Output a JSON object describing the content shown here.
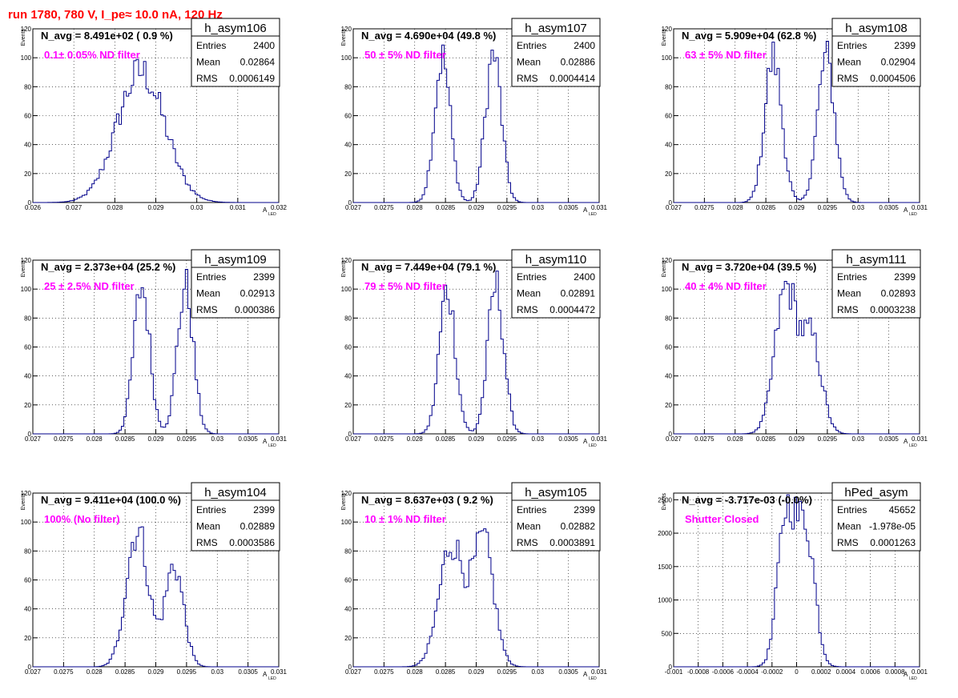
{
  "page": {
    "title": "run 1780,   780 V, I_pe≈ 10.0 nA, 120 Hz"
  },
  "style": {
    "histColor": "#00008b",
    "titleColor": "#ff0000",
    "annotationColor": "#ff00ff",
    "gridColor": "#000000"
  },
  "chart_data": [
    {
      "type": "histogram",
      "name": "h_asym106",
      "navg": "N_avg = 8.491e+02 ( 0.9 %)",
      "note": "0.1± 0.05% ND filter",
      "stats": {
        "Entries": "2400",
        "Mean": "0.02864",
        "RMS": "0.0006149"
      },
      "xlabel": "A",
      "xlabel_sub": "LED",
      "ylabel": "Events",
      "xlim": [
        0.026,
        0.032
      ],
      "xticks": [
        0.026,
        0.027,
        0.028,
        0.029,
        0.03,
        0.031,
        0.032
      ],
      "xtick_labels": [
        "0.026",
        "0.027",
        "0.028",
        "0.029",
        "0.03",
        "0.031",
        "0.032"
      ],
      "ylim": [
        0,
        120
      ],
      "yticks": [
        0,
        20,
        40,
        60,
        80,
        100,
        120
      ],
      "ytick_labels": [
        "0",
        "20",
        "40",
        "60",
        "80",
        "100",
        "120"
      ],
      "peaks": [
        {
          "mu": 0.02864,
          "sigma": 0.00058,
          "amp": 90
        }
      ]
    },
    {
      "type": "histogram",
      "name": "h_asym107",
      "navg": "N_avg = 4.690e+04 (49.8 %)",
      "note": "50 ± 5% ND filter",
      "stats": {
        "Entries": "2400",
        "Mean": "0.02886",
        "RMS": "0.0004414"
      },
      "xlabel": "A",
      "xlabel_sub": "LED",
      "ylabel": "Events",
      "xlim": [
        0.027,
        0.031
      ],
      "xticks": [
        0.027,
        0.0275,
        0.028,
        0.0285,
        0.029,
        0.0295,
        0.03,
        0.0305,
        0.031
      ],
      "xtick_labels": [
        "0.027",
        "0.0275",
        "0.028",
        "0.0285",
        "0.029",
        "0.0295",
        "0.03",
        "0.0305",
        "0.031"
      ],
      "ylim": [
        0,
        120
      ],
      "yticks": [
        0,
        20,
        40,
        60,
        80,
        100,
        120
      ],
      "ytick_labels": [
        "0",
        "20",
        "40",
        "60",
        "80",
        "100",
        "120"
      ],
      "peaks": [
        {
          "mu": 0.02845,
          "sigma": 0.00013,
          "amp": 100
        },
        {
          "mu": 0.02928,
          "sigma": 0.00013,
          "amp": 102
        }
      ]
    },
    {
      "type": "histogram",
      "name": "h_asym108",
      "navg": "N_avg = 5.909e+04 (62.8 %)",
      "note": "63 ± 5% ND filter",
      "stats": {
        "Entries": "2399",
        "Mean": "0.02904",
        "RMS": "0.0004506"
      },
      "xlabel": "A",
      "xlabel_sub": "LED",
      "ylabel": "Events",
      "xlim": [
        0.027,
        0.031
      ],
      "xticks": [
        0.027,
        0.0275,
        0.028,
        0.0285,
        0.029,
        0.0295,
        0.03,
        0.0305,
        0.031
      ],
      "xtick_labels": [
        "0.027",
        "0.0275",
        "0.028",
        "0.0285",
        "0.029",
        "0.0295",
        "0.03",
        "0.0305",
        "0.031"
      ],
      "ylim": [
        0,
        120
      ],
      "yticks": [
        0,
        20,
        40,
        60,
        80,
        100,
        120
      ],
      "ytick_labels": [
        "0",
        "20",
        "40",
        "60",
        "80",
        "100",
        "120"
      ],
      "peaks": [
        {
          "mu": 0.02862,
          "sigma": 0.00014,
          "amp": 100
        },
        {
          "mu": 0.02948,
          "sigma": 0.00014,
          "amp": 100
        }
      ]
    },
    {
      "type": "histogram",
      "name": "h_asym109",
      "navg": "N_avg = 2.373e+04 (25.2 %)",
      "note": "25 ± 2.5% ND filter",
      "stats": {
        "Entries": "2399",
        "Mean": "0.02913",
        "RMS": "0.000386"
      },
      "xlabel": "A",
      "xlabel_sub": "LED",
      "ylabel": "Events",
      "xlim": [
        0.027,
        0.031
      ],
      "xticks": [
        0.027,
        0.0275,
        0.028,
        0.0285,
        0.029,
        0.0295,
        0.03,
        0.0305,
        0.031
      ],
      "xtick_labels": [
        "0.027",
        "0.0275",
        "0.028",
        "0.0285",
        "0.029",
        "0.0295",
        "0.03",
        "0.0305",
        "0.031"
      ],
      "ylim": [
        0,
        120
      ],
      "yticks": [
        0,
        20,
        40,
        60,
        80,
        100,
        120
      ],
      "ytick_labels": [
        "0",
        "20",
        "40",
        "60",
        "80",
        "100",
        "120"
      ],
      "peaks": [
        {
          "mu": 0.02877,
          "sigma": 0.00013,
          "amp": 102
        },
        {
          "mu": 0.02948,
          "sigma": 0.00013,
          "amp": 102
        }
      ]
    },
    {
      "type": "histogram",
      "name": "h_asym110",
      "navg": "N_avg = 7.449e+04 (79.1 %)",
      "note": "79 ± 5% ND filter",
      "stats": {
        "Entries": "2400",
        "Mean": "0.02891",
        "RMS": "0.0004472"
      },
      "xlabel": "A",
      "xlabel_sub": "LED",
      "ylabel": "Events",
      "xlim": [
        0.027,
        0.031
      ],
      "xticks": [
        0.027,
        0.0275,
        0.028,
        0.0285,
        0.029,
        0.0295,
        0.03,
        0.0305,
        0.031
      ],
      "xtick_labels": [
        "0.027",
        "0.0275",
        "0.028",
        "0.0285",
        "0.029",
        "0.0295",
        "0.03",
        "0.0305",
        "0.031"
      ],
      "ylim": [
        0,
        120
      ],
      "yticks": [
        0,
        20,
        40,
        60,
        80,
        100,
        120
      ],
      "ytick_labels": [
        "0",
        "20",
        "40",
        "60",
        "80",
        "100",
        "120"
      ],
      "peaks": [
        {
          "mu": 0.02853,
          "sigma": 0.00013,
          "amp": 100
        },
        {
          "mu": 0.02932,
          "sigma": 0.00013,
          "amp": 102
        }
      ]
    },
    {
      "type": "histogram",
      "name": "h_asym111",
      "navg": "N_avg = 3.720e+04 (39.5 %)",
      "note": "40 ± 4% ND filter",
      "stats": {
        "Entries": "2399",
        "Mean": "0.02893",
        "RMS": "0.0003238"
      },
      "xlabel": "A",
      "xlabel_sub": "LED",
      "ylabel": "Events",
      "xlim": [
        0.027,
        0.031
      ],
      "xticks": [
        0.027,
        0.0275,
        0.028,
        0.0285,
        0.029,
        0.0295,
        0.03,
        0.0305,
        0.031
      ],
      "xtick_labels": [
        "0.027",
        "0.0275",
        "0.028",
        "0.0285",
        "0.029",
        "0.0295",
        "0.03",
        "0.0305",
        "0.031"
      ],
      "ylim": [
        0,
        120
      ],
      "yticks": [
        0,
        20,
        40,
        60,
        80,
        100,
        120
      ],
      "ytick_labels": [
        "0",
        "20",
        "40",
        "60",
        "80",
        "100",
        "120"
      ],
      "peaks": [
        {
          "mu": 0.02883,
          "sigma": 0.00018,
          "amp": 100
        },
        {
          "mu": 0.02925,
          "sigma": 0.00016,
          "amp": 62
        }
      ]
    },
    {
      "type": "histogram",
      "name": "h_asym104",
      "navg": "N_avg = 9.411e+04 (100.0 %)",
      "note": "100% (No filter)",
      "stats": {
        "Entries": "2399",
        "Mean": "0.02889",
        "RMS": "0.0003586"
      },
      "xlabel": "A",
      "xlabel_sub": "LED",
      "ylabel": "Events",
      "xlim": [
        0.027,
        0.031
      ],
      "xticks": [
        0.027,
        0.0275,
        0.028,
        0.0285,
        0.029,
        0.0295,
        0.03,
        0.0305,
        0.031
      ],
      "xtick_labels": [
        "0.027",
        "0.0275",
        "0.028",
        "0.0285",
        "0.029",
        "0.0295",
        "0.03",
        "0.0305",
        "0.031"
      ],
      "ylim": [
        0,
        120
      ],
      "yticks": [
        0,
        20,
        40,
        60,
        80,
        100,
        120
      ],
      "ytick_labels": [
        "0",
        "20",
        "40",
        "60",
        "80",
        "100",
        "120"
      ],
      "peaks": [
        {
          "mu": 0.0287,
          "sigma": 0.00018,
          "amp": 95
        },
        {
          "mu": 0.0293,
          "sigma": 0.00015,
          "amp": 70
        }
      ]
    },
    {
      "type": "histogram",
      "name": "h_asym105",
      "navg": "N_avg = 8.637e+03 ( 9.2 %)",
      "note": "10 ± 1% ND filter",
      "stats": {
        "Entries": "2399",
        "Mean": "0.02882",
        "RMS": "0.0003891"
      },
      "xlabel": "A",
      "xlabel_sub": "LED",
      "ylabel": "Events",
      "xlim": [
        0.027,
        0.031
      ],
      "xticks": [
        0.027,
        0.0275,
        0.028,
        0.0285,
        0.029,
        0.0295,
        0.03,
        0.0305,
        0.031
      ],
      "xtick_labels": [
        "0.027",
        "0.0275",
        "0.028",
        "0.0285",
        "0.029",
        "0.0295",
        "0.03",
        "0.0305",
        "0.031"
      ],
      "ylim": [
        0,
        120
      ],
      "yticks": [
        0,
        20,
        40,
        60,
        80,
        100,
        120
      ],
      "ytick_labels": [
        "0",
        "20",
        "40",
        "60",
        "80",
        "100",
        "120"
      ],
      "peaks": [
        {
          "mu": 0.0286,
          "sigma": 0.0002,
          "amp": 85
        },
        {
          "mu": 0.02912,
          "sigma": 0.00017,
          "amp": 85
        }
      ]
    },
    {
      "type": "histogram",
      "name": "hPed_asym",
      "navg": "N_avg = -3.717e-03 (-0.0%)",
      "note": "Shutter Closed",
      "stats": {
        "Entries": "45652",
        "Mean": "-1.978e-05",
        "RMS": "0.0001263"
      },
      "xlabel": "A",
      "xlabel_sub": "LED",
      "ylabel": "Events",
      "xlim": [
        -0.001,
        0.001
      ],
      "xticks": [
        -0.001,
        -0.0008,
        -0.0006,
        -0.0004,
        -0.0002,
        0,
        0.0002,
        0.0004,
        0.0006,
        0.0008,
        0.001
      ],
      "xtick_labels": [
        "-0.001",
        "-0.0008",
        "-0.0006",
        "-0.0004",
        "-0.0002",
        "0",
        "0.0002",
        "0.0004",
        "0.0006",
        "0.0008",
        "0.001"
      ],
      "ylim": [
        0,
        2600
      ],
      "yticks": [
        0,
        500,
        1000,
        1500,
        2000,
        2500
      ],
      "ytick_labels": [
        "0",
        "500",
        "1000",
        "1500",
        "2000",
        "2500"
      ],
      "peaks": [
        {
          "mu": -8e-05,
          "sigma": 7e-05,
          "amp": 2350
        },
        {
          "mu": 8e-05,
          "sigma": 7e-05,
          "amp": 2000
        }
      ]
    }
  ]
}
